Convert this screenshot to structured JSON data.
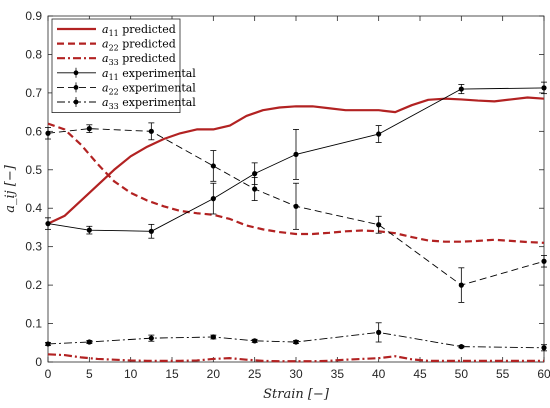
{
  "chart_data": {
    "type": "line",
    "xlabel": "Strain [−]",
    "ylabel": "a_ij [−]",
    "xlim": [
      0,
      60
    ],
    "ylim": [
      0,
      0.9
    ],
    "x_ticks": [
      0,
      5,
      10,
      15,
      20,
      25,
      30,
      35,
      40,
      45,
      50,
      55,
      60
    ],
    "y_ticks": [
      0,
      0.1,
      0.2,
      0.3,
      0.4,
      0.5,
      0.6,
      0.7,
      0.8,
      0.9
    ],
    "x_tick_labels": [
      "0",
      "5",
      "10",
      "15",
      "20",
      "25",
      "30",
      "35",
      "40",
      "45",
      "50",
      "55",
      "60"
    ],
    "y_tick_labels": [
      "0",
      "0.1",
      "0.2",
      "0.3",
      "0.4",
      "0.5",
      "0.6",
      "0.7",
      "0.8",
      "0.9"
    ],
    "grid": false,
    "legend_position": "top-left",
    "series": [
      {
        "name": "a11 predicted",
        "legend_main": "a",
        "legend_sub": "11",
        "legend_rest": " predicted",
        "kind": "predicted",
        "color": "#b22222",
        "dash": "solid",
        "x": [
          0,
          2,
          4,
          6,
          8,
          10,
          12,
          14,
          16,
          18,
          20,
          22,
          24,
          26,
          28,
          30,
          32,
          34,
          36,
          38,
          40,
          42,
          44,
          46,
          48,
          50,
          52,
          54,
          56,
          58,
          60
        ],
        "y": [
          0.36,
          0.38,
          0.42,
          0.46,
          0.5,
          0.535,
          0.56,
          0.58,
          0.595,
          0.605,
          0.605,
          0.615,
          0.64,
          0.655,
          0.662,
          0.665,
          0.665,
          0.66,
          0.655,
          0.655,
          0.655,
          0.65,
          0.668,
          0.682,
          0.685,
          0.683,
          0.68,
          0.678,
          0.683,
          0.688,
          0.685
        ]
      },
      {
        "name": "a22 predicted",
        "legend_main": "a",
        "legend_sub": "22",
        "legend_rest": " predicted",
        "kind": "predicted",
        "color": "#b22222",
        "dash": "dashed",
        "x": [
          0,
          2,
          4,
          6,
          8,
          10,
          12,
          14,
          16,
          18,
          20,
          22,
          24,
          26,
          28,
          30,
          32,
          34,
          36,
          38,
          40,
          42,
          44,
          46,
          48,
          50,
          52,
          54,
          56,
          58,
          60
        ],
        "y": [
          0.62,
          0.605,
          0.565,
          0.515,
          0.47,
          0.44,
          0.42,
          0.405,
          0.393,
          0.387,
          0.383,
          0.372,
          0.355,
          0.345,
          0.338,
          0.333,
          0.333,
          0.336,
          0.34,
          0.342,
          0.34,
          0.335,
          0.325,
          0.316,
          0.313,
          0.313,
          0.315,
          0.318,
          0.315,
          0.312,
          0.31
        ]
      },
      {
        "name": "a33 predicted",
        "legend_main": "a",
        "legend_sub": "33",
        "legend_rest": " predicted",
        "kind": "predicted",
        "color": "#b22222",
        "dash": "dashdot",
        "x": [
          0,
          2,
          4,
          6,
          8,
          10,
          12,
          14,
          16,
          18,
          20,
          22,
          24,
          26,
          28,
          30,
          32,
          34,
          36,
          38,
          40,
          42,
          44,
          46,
          48,
          50,
          52,
          54,
          56,
          58,
          60
        ],
        "y": [
          0.02,
          0.018,
          0.012,
          0.008,
          0.006,
          0.004,
          0.003,
          0.003,
          0.003,
          0.004,
          0.008,
          0.01,
          0.006,
          0.003,
          0.002,
          0.002,
          0.002,
          0.003,
          0.006,
          0.008,
          0.01,
          0.015,
          0.007,
          0.003,
          0.003,
          0.003,
          0.003,
          0.003,
          0.003,
          0.003,
          0.003
        ]
      },
      {
        "name": "a11 experimental",
        "legend_main": "a",
        "legend_sub": "11",
        "legend_rest": " experimental",
        "kind": "experimental",
        "color": "#000000",
        "dash": "solid",
        "x": [
          0,
          5,
          12.5,
          20,
          25,
          30,
          40,
          50,
          60
        ],
        "y": [
          0.36,
          0.343,
          0.34,
          0.425,
          0.49,
          0.54,
          0.593,
          0.71,
          0.713
        ],
        "err": [
          0.015,
          0.01,
          0.018,
          0.04,
          0.028,
          0.065,
          0.022,
          0.012,
          0.015
        ]
      },
      {
        "name": "a22 experimental",
        "legend_main": "a",
        "legend_sub": "22",
        "legend_rest": " experimental",
        "kind": "experimental",
        "color": "#000000",
        "dash": "dashed",
        "x": [
          0,
          5,
          12.5,
          20,
          25,
          30,
          40,
          50,
          60
        ],
        "y": [
          0.595,
          0.607,
          0.6,
          0.51,
          0.45,
          0.405,
          0.357,
          0.2,
          0.262
        ],
        "err": [
          0.015,
          0.01,
          0.022,
          0.04,
          0.03,
          0.06,
          0.022,
          0.045,
          0.015
        ]
      },
      {
        "name": "a33 experimental",
        "legend_main": "a",
        "legend_sub": "33",
        "legend_rest": " experimental",
        "kind": "experimental",
        "color": "#000000",
        "dash": "dashdot",
        "x": [
          0,
          5,
          12.5,
          20,
          25,
          30,
          40,
          50,
          60
        ],
        "y": [
          0.047,
          0.052,
          0.062,
          0.065,
          0.055,
          0.052,
          0.077,
          0.04,
          0.037
        ],
        "err": [
          0.004,
          0.004,
          0.008,
          0.005,
          0.004,
          0.004,
          0.025,
          0.003,
          0.008
        ]
      }
    ]
  }
}
